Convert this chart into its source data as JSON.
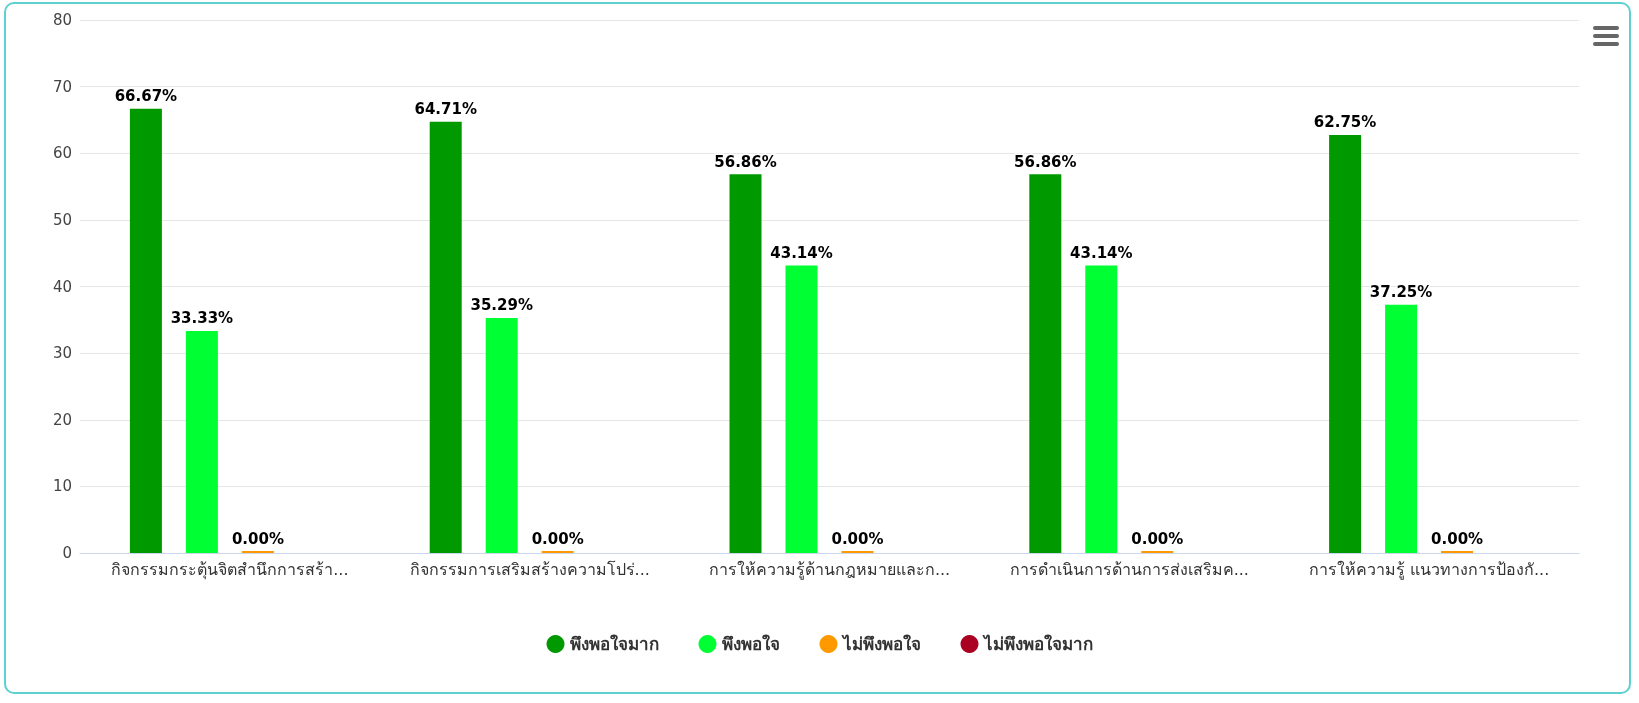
{
  "chart_data": {
    "type": "bar",
    "categories": [
      "กิจกรรมกระตุ้นจิตสำนึกการสร้า...",
      "กิจกรรมการเสริมสร้างความโปร่...",
      "การให้ความรู้ด้านกฎหมายและก...",
      "การดำเนินการด้านการส่งเสริมค...",
      "การให้ความรู้ แนวทางการป้องกั..."
    ],
    "series": [
      {
        "name": "พึงพอใจมาก",
        "color": "#009900",
        "values": [
          66.67,
          64.71,
          56.86,
          56.86,
          62.75
        ],
        "value_labels": [
          "66.67%",
          "64.71%",
          "56.86%",
          "56.86%",
          "62.75%"
        ]
      },
      {
        "name": "พึงพอใจ",
        "color": "#00ff33",
        "values": [
          33.33,
          35.29,
          43.14,
          43.14,
          37.25
        ],
        "value_labels": [
          "33.33%",
          "35.29%",
          "43.14%",
          "43.14%",
          "37.25%"
        ]
      },
      {
        "name": "ไม่พึงพอใจ",
        "color": "#ff9900",
        "values": [
          0,
          0,
          0,
          0,
          0
        ],
        "value_labels": [
          "0.00%",
          "0.00%",
          "0.00%",
          "0.00%",
          "0.00%"
        ]
      },
      {
        "name": "ไม่พึงพอใจมาก",
        "color": "#aa0022",
        "values": [
          null,
          null,
          null,
          null,
          null
        ]
      }
    ],
    "ylim": [
      0,
      80
    ],
    "yticks": [
      0,
      10,
      20,
      30,
      40,
      50,
      60,
      70,
      80
    ],
    "grid": "y",
    "legend": "bottom"
  }
}
